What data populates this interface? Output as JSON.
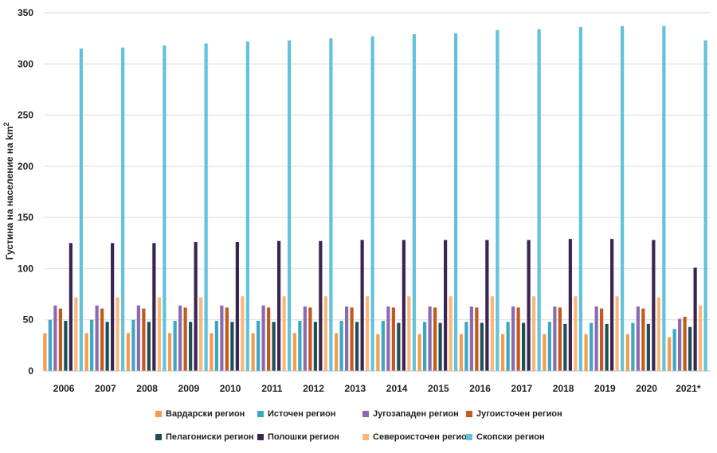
{
  "chart_data": {
    "type": "bar",
    "title": "",
    "ylabel": "Густина на население на km",
    "ylabel_sup": "2",
    "xlabel": "",
    "ylim": [
      0,
      350
    ],
    "yticks": [
      0,
      50,
      100,
      150,
      200,
      250,
      300,
      350
    ],
    "grid": true,
    "legend_position": "bottom",
    "categories": [
      "2006",
      "2007",
      "2008",
      "2009",
      "2010",
      "2011",
      "2012",
      "2013",
      "2014",
      "2015",
      "2016",
      "2017",
      "2018",
      "2019",
      "2020",
      "2021*"
    ],
    "series": [
      {
        "name": "Вардарски регион",
        "color": "#F59B4C",
        "values": [
          37,
          37,
          37,
          37,
          37,
          37,
          37,
          37,
          36,
          36,
          36,
          36,
          36,
          36,
          36,
          33
        ]
      },
      {
        "name": "Источен регион",
        "color": "#3BA7C4",
        "values": [
          50,
          50,
          50,
          49,
          49,
          49,
          49,
          49,
          49,
          48,
          48,
          48,
          48,
          47,
          47,
          41
        ]
      },
      {
        "name": "Југозападен регион",
        "color": "#8A6BB0",
        "values": [
          64,
          64,
          64,
          64,
          64,
          64,
          63,
          63,
          63,
          63,
          63,
          63,
          63,
          63,
          63,
          51
        ]
      },
      {
        "name": "Југоисточен регион",
        "color": "#C25A1C",
        "values": [
          61,
          61,
          61,
          62,
          62,
          62,
          62,
          62,
          62,
          62,
          62,
          62,
          62,
          61,
          61,
          53
        ]
      },
      {
        "name": "Пелагониски регион",
        "color": "#1E4E5A",
        "values": [
          49,
          48,
          48,
          48,
          48,
          48,
          48,
          48,
          47,
          47,
          47,
          47,
          46,
          46,
          46,
          43
        ]
      },
      {
        "name": "Полошки регион",
        "color": "#3A2450",
        "values": [
          125,
          125,
          125,
          126,
          126,
          127,
          127,
          128,
          128,
          128,
          128,
          128,
          129,
          129,
          128,
          101
        ]
      },
      {
        "name": "Североисточен регион",
        "color": "#F9B77A",
        "values": [
          72,
          72,
          72,
          72,
          73,
          73,
          73,
          73,
          73,
          73,
          73,
          73,
          73,
          73,
          72,
          64
        ]
      },
      {
        "name": "Скопски регион",
        "color": "#62C2DA",
        "values": [
          315,
          316,
          318,
          320,
          322,
          323,
          325,
          327,
          329,
          330,
          333,
          334,
          336,
          337,
          337,
          323
        ]
      }
    ]
  }
}
